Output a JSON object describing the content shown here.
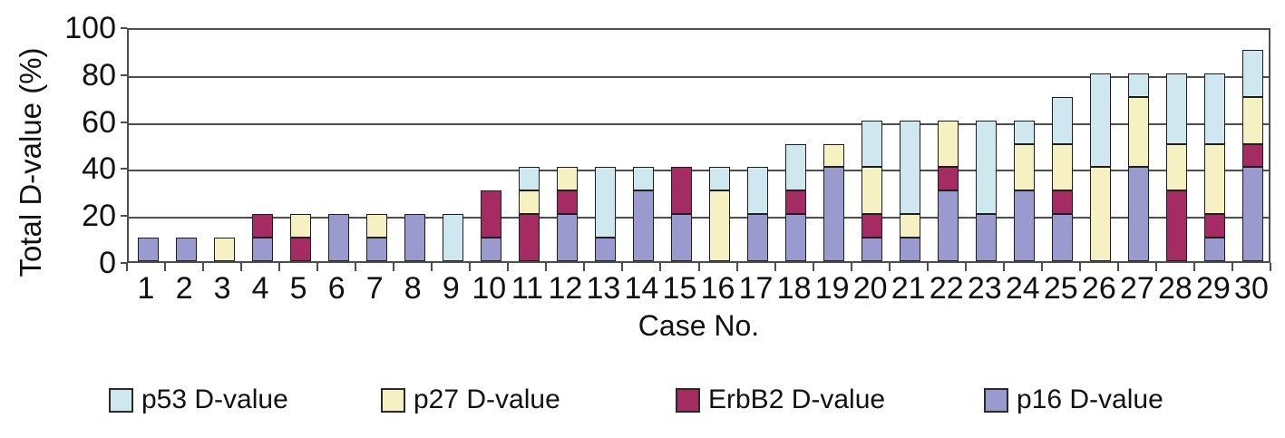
{
  "chart_data": {
    "type": "bar",
    "stacked": true,
    "title": "",
    "xlabel": "Case No.",
    "ylabel": "Total D-value (%)",
    "ylim": [
      0,
      100
    ],
    "y_ticks": [
      0,
      20,
      40,
      60,
      80,
      100
    ],
    "grid": true,
    "legend_position": "bottom",
    "categories": [
      "1",
      "2",
      "3",
      "4",
      "5",
      "6",
      "7",
      "8",
      "9",
      "10",
      "11",
      "12",
      "13",
      "14",
      "15",
      "16",
      "17",
      "18",
      "19",
      "20",
      "21",
      "22",
      "23",
      "24",
      "25",
      "26",
      "27",
      "28",
      "29",
      "30"
    ],
    "series": [
      {
        "name": "p16 D-value",
        "color": "#9b9ace",
        "values": [
          10,
          10,
          0,
          10,
          0,
          20,
          10,
          20,
          0,
          10,
          0,
          20,
          10,
          30,
          20,
          0,
          20,
          20,
          40,
          10,
          10,
          30,
          20,
          30,
          20,
          0,
          40,
          0,
          10,
          40
        ]
      },
      {
        "name": "ErbB2 D-value",
        "color": "#a52c63",
        "values": [
          0,
          0,
          0,
          10,
          10,
          0,
          0,
          0,
          0,
          20,
          20,
          10,
          0,
          0,
          20,
          0,
          0,
          10,
          0,
          10,
          0,
          10,
          0,
          0,
          10,
          0,
          0,
          30,
          10,
          10
        ]
      },
      {
        "name": "p27 D-value",
        "color": "#f6f1c3",
        "values": [
          0,
          0,
          10,
          0,
          10,
          0,
          10,
          0,
          0,
          0,
          10,
          10,
          0,
          0,
          0,
          30,
          0,
          0,
          10,
          20,
          10,
          20,
          0,
          20,
          20,
          40,
          30,
          20,
          30,
          20
        ]
      },
      {
        "name": "p53 D-value",
        "color": "#cfe7ef",
        "values": [
          0,
          0,
          0,
          0,
          0,
          0,
          0,
          0,
          20,
          0,
          10,
          0,
          30,
          10,
          0,
          10,
          20,
          20,
          0,
          20,
          40,
          0,
          40,
          10,
          20,
          40,
          10,
          30,
          30,
          20
        ]
      }
    ],
    "legend": [
      {
        "label": "p53 D-value",
        "color": "#cfe7ef"
      },
      {
        "label": "p27 D-value",
        "color": "#f6f1c3"
      },
      {
        "label": "ErbB2 D-value",
        "color": "#a52c63"
      },
      {
        "label": "p16 D-value",
        "color": "#9b9ace"
      }
    ]
  }
}
